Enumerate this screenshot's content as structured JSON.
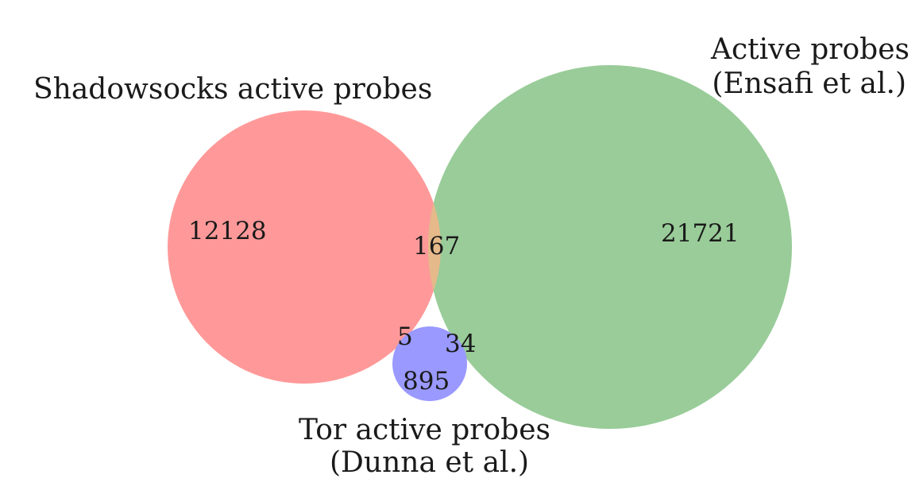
{
  "diagram": {
    "type": "venn",
    "sets": [
      {
        "key": "shadowsocks",
        "label_lines": [
          "Shadowsocks active probes"
        ],
        "color": "#ff9999",
        "only_count": "12128"
      },
      {
        "key": "ensafi",
        "label_lines": [
          "Active probes",
          "(Ensafi et al.)"
        ],
        "color": "#99cc99",
        "only_count": "21721"
      },
      {
        "key": "tor",
        "label_lines": [
          "Tor active probes",
          "(Dunna et al.)"
        ],
        "color": "#9999ff",
        "only_count": "895"
      }
    ],
    "intersections": {
      "shadowsocks_ensafi": "167",
      "shadowsocks_tor": "5",
      "ensafi_tor": "34"
    },
    "overlap_color": "#e6b98a"
  }
}
